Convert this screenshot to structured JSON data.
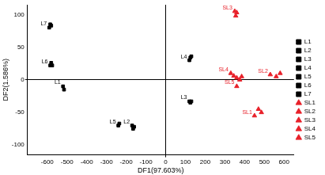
{
  "chart_data": {
    "type": "scatter",
    "x_label": "DF1(97.603%)",
    "y_label": "DF2(1.586%)",
    "xlim": [
      -700,
      650
    ],
    "ylim": [
      -115,
      115
    ],
    "xticks": [
      -600,
      -500,
      -400,
      -300,
      -200,
      -100,
      0,
      100,
      200,
      300,
      400,
      500,
      600
    ],
    "yticks": [
      -100,
      -50,
      0,
      50,
      100
    ],
    "grid": false,
    "legend": "right",
    "series": [
      {
        "name": "L1",
        "color": "#000000",
        "marker": "square",
        "x": [
          -520,
          -515
        ],
        "y": [
          -10,
          -15
        ]
      },
      {
        "name": "L2",
        "color": "#000000",
        "marker": "square",
        "x": [
          -170,
          -165,
          -160
        ],
        "y": [
          -70,
          -75,
          -72
        ]
      },
      {
        "name": "L3",
        "color": "#000000",
        "marker": "square",
        "x": [
          120,
          125,
          130
        ],
        "y": [
          -33,
          -35,
          -33
        ]
      },
      {
        "name": "L4",
        "color": "#000000",
        "marker": "square",
        "x": [
          120,
          125,
          130
        ],
        "y": [
          30,
          34,
          36
        ]
      },
      {
        "name": "L5",
        "color": "#000000",
        "marker": "square",
        "x": [
          -240,
          -235
        ],
        "y": [
          -70,
          -67
        ]
      },
      {
        "name": "L6",
        "color": "#000000",
        "marker": "square",
        "x": [
          -585,
          -580,
          -575
        ],
        "y": [
          22,
          26,
          22
        ]
      },
      {
        "name": "L7",
        "color": "#000000",
        "marker": "square",
        "x": [
          -590,
          -585,
          -580
        ],
        "y": [
          80,
          85,
          83
        ]
      },
      {
        "name": "SL1",
        "color": "#e8212a",
        "marker": "triangle",
        "x": [
          450,
          470,
          485
        ],
        "y": [
          -55,
          -45,
          -50
        ]
      },
      {
        "name": "SL2",
        "color": "#e8212a",
        "marker": "triangle",
        "x": [
          530,
          560,
          580
        ],
        "y": [
          8,
          5,
          10
        ]
      },
      {
        "name": "SL3",
        "color": "#e8212a",
        "marker": "triangle",
        "x": [
          350,
          355,
          360
        ],
        "y": [
          105,
          98,
          103
        ]
      },
      {
        "name": "SL4",
        "color": "#e8212a",
        "marker": "triangle",
        "x": [
          330,
          345,
          360
        ],
        "y": [
          10,
          6,
          3
        ]
      },
      {
        "name": "SL5",
        "color": "#e8212a",
        "marker": "triangle",
        "x": [
          360,
          375,
          385
        ],
        "y": [
          -10,
          0,
          5
        ]
      }
    ]
  }
}
